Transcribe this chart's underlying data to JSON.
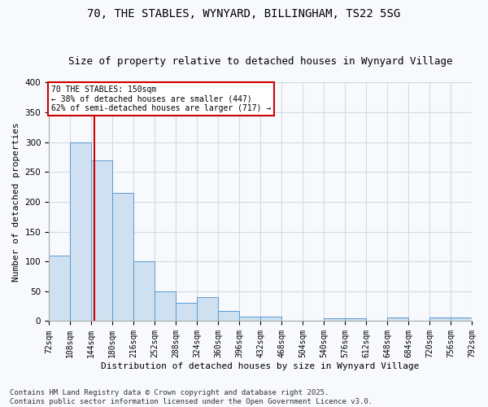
{
  "title_line1": "70, THE STABLES, WYNYARD, BILLINGHAM, TS22 5SG",
  "title_line2": "Size of property relative to detached houses in Wynyard Village",
  "xlabel": "Distribution of detached houses by size in Wynyard Village",
  "ylabel": "Number of detached properties",
  "bar_color": "#cfe0f0",
  "bar_edge_color": "#5b9bd5",
  "bins": [
    72,
    108,
    144,
    180,
    216,
    252,
    288,
    324,
    360,
    396,
    432,
    468,
    504,
    540,
    576,
    612,
    648,
    684,
    720,
    756,
    792
  ],
  "counts": [
    110,
    300,
    270,
    215,
    100,
    50,
    30,
    40,
    17,
    7,
    7,
    0,
    0,
    5,
    5,
    0,
    6,
    0,
    6,
    6
  ],
  "reference_line_x": 150,
  "reference_line_color": "#cc0000",
  "annotation_text": "70 THE STABLES: 150sqm\n← 38% of detached houses are smaller (447)\n62% of semi-detached houses are larger (717) →",
  "annotation_box_color": "#ffffff",
  "annotation_box_edge_color": "#cc0000",
  "footer_text": "Contains HM Land Registry data © Crown copyright and database right 2025.\nContains public sector information licensed under the Open Government Licence v3.0.",
  "ylim": [
    0,
    400
  ],
  "background_color": "#f7f9fc",
  "plot_bg_color": "#f7f9fc",
  "grid_color": "#d0dce8",
  "title_fontsize": 10,
  "subtitle_fontsize": 9,
  "tick_label_fontsize": 7,
  "axis_label_fontsize": 8,
  "footer_fontsize": 6.5
}
